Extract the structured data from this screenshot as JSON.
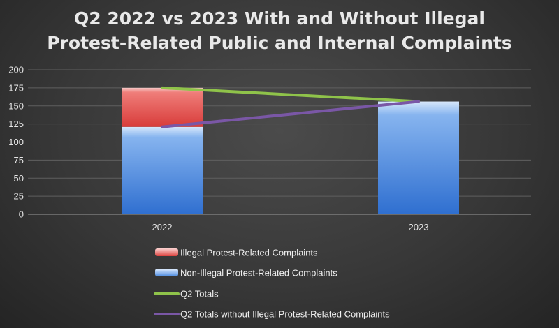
{
  "chart_data": {
    "type": "bar",
    "title_lines": [
      "Q2 2022 vs 2023 With and Without Illegal",
      "Protest-Related Public and Internal Complaints"
    ],
    "categories": [
      "2022",
      "2023"
    ],
    "ylim": [
      0,
      200
    ],
    "yticks": [
      "0",
      "25",
      "50",
      "75",
      "100",
      "125",
      "150",
      "175",
      "200"
    ],
    "grid": true,
    "legend_position": "bottom",
    "series": [
      {
        "name": "Illegal Protest-Related Complaints",
        "kind": "bar",
        "values": [
          54,
          0
        ],
        "color": "#e85050"
      },
      {
        "name": "Non-Illegal Protest-Related Complaints",
        "kind": "bar",
        "values": [
          121,
          156
        ],
        "color": "#3f84e0"
      },
      {
        "name": "Q2 Totals",
        "kind": "line",
        "values": [
          175,
          156
        ],
        "color": "#8fc34a"
      },
      {
        "name": "Q2 Totals without Illegal Protest-Related Complaints",
        "kind": "line",
        "values": [
          121,
          156
        ],
        "color": "#7a57a6"
      }
    ]
  }
}
